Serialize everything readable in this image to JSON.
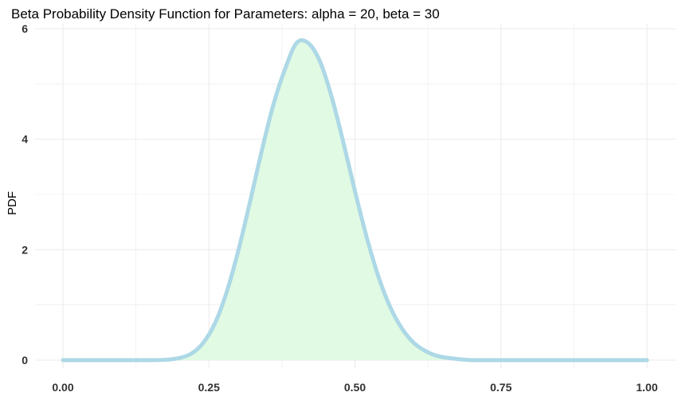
{
  "chart_data": {
    "type": "area",
    "title": "Beta Probability Density Function for Parameters: alpha = 20, beta = 30",
    "xlabel": "",
    "ylabel": "PDF",
    "distribution": {
      "family": "beta",
      "alpha": 20,
      "beta": 30
    },
    "x": [
      0.0,
      0.05,
      0.1,
      0.15,
      0.18,
      0.2,
      0.22,
      0.24,
      0.26,
      0.28,
      0.3,
      0.32,
      0.34,
      0.36,
      0.38,
      0.4,
      0.42,
      0.44,
      0.46,
      0.48,
      0.5,
      0.52,
      0.54,
      0.56,
      0.58,
      0.6,
      0.62,
      0.64,
      0.66,
      0.7,
      0.75,
      0.8,
      0.9,
      1.0
    ],
    "y": [
      0.0,
      0.0,
      0.0,
      0.0,
      0.01,
      0.04,
      0.12,
      0.31,
      0.66,
      1.22,
      1.97,
      2.85,
      3.77,
      4.61,
      5.26,
      5.74,
      5.74,
      5.41,
      4.77,
      3.95,
      3.06,
      2.23,
      1.52,
      0.97,
      0.58,
      0.32,
      0.17,
      0.08,
      0.04,
      0.0,
      0.0,
      0.0,
      0.0,
      0.0
    ],
    "xlim": [
      0,
      1
    ],
    "ylim": [
      0,
      6
    ],
    "xticks": [
      0,
      0.25,
      0.5,
      0.75,
      1
    ],
    "xtick_labels": [
      "0.00",
      "0.25",
      "0.50",
      "0.75",
      "1.00"
    ],
    "yticks": [
      0,
      2,
      4,
      6
    ],
    "ytick_labels": [
      "0",
      "2",
      "4",
      "6"
    ],
    "grid": true,
    "legend": "none",
    "colors": {
      "line": "#add8e6",
      "fill": "#e0fae3",
      "grid": "#ebebeb",
      "text": "#333333"
    }
  }
}
